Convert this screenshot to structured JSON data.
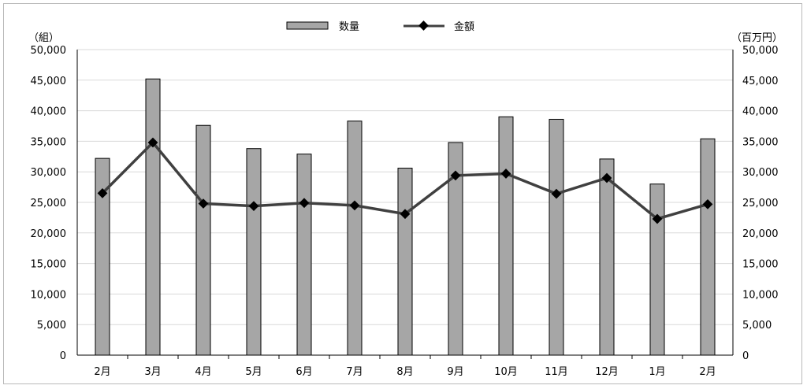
{
  "chart_data": {
    "type": "bar+line",
    "title": "",
    "categories": [
      "2月",
      "3月",
      "4月",
      "5月",
      "6月",
      "7月",
      "8月",
      "9月",
      "10月",
      "11月",
      "12月",
      "1月",
      "2月"
    ],
    "series": [
      {
        "name": "数量",
        "type": "bar",
        "axis": "left",
        "values": [
          32200,
          45200,
          37600,
          33800,
          32900,
          38300,
          30600,
          34800,
          39000,
          38600,
          32100,
          28000,
          35400
        ]
      },
      {
        "name": "金額",
        "type": "line",
        "axis": "right",
        "values": [
          26500,
          34800,
          24800,
          24400,
          24900,
          24500,
          23100,
          29400,
          29700,
          26400,
          29000,
          22300,
          24700
        ]
      }
    ],
    "y_left": {
      "label": "（組）",
      "min": 0,
      "max": 50000,
      "step": 5000
    },
    "y_right": {
      "label": "（百万円）",
      "min": 0,
      "max": 50000,
      "step": 5000
    },
    "grid": true,
    "legend_position": "top",
    "colors": {
      "bar_fill": "#a6a6a6",
      "bar_stroke": "#000000",
      "line": "#404040",
      "marker": "#000000",
      "grid": "#d9d9d9"
    }
  }
}
